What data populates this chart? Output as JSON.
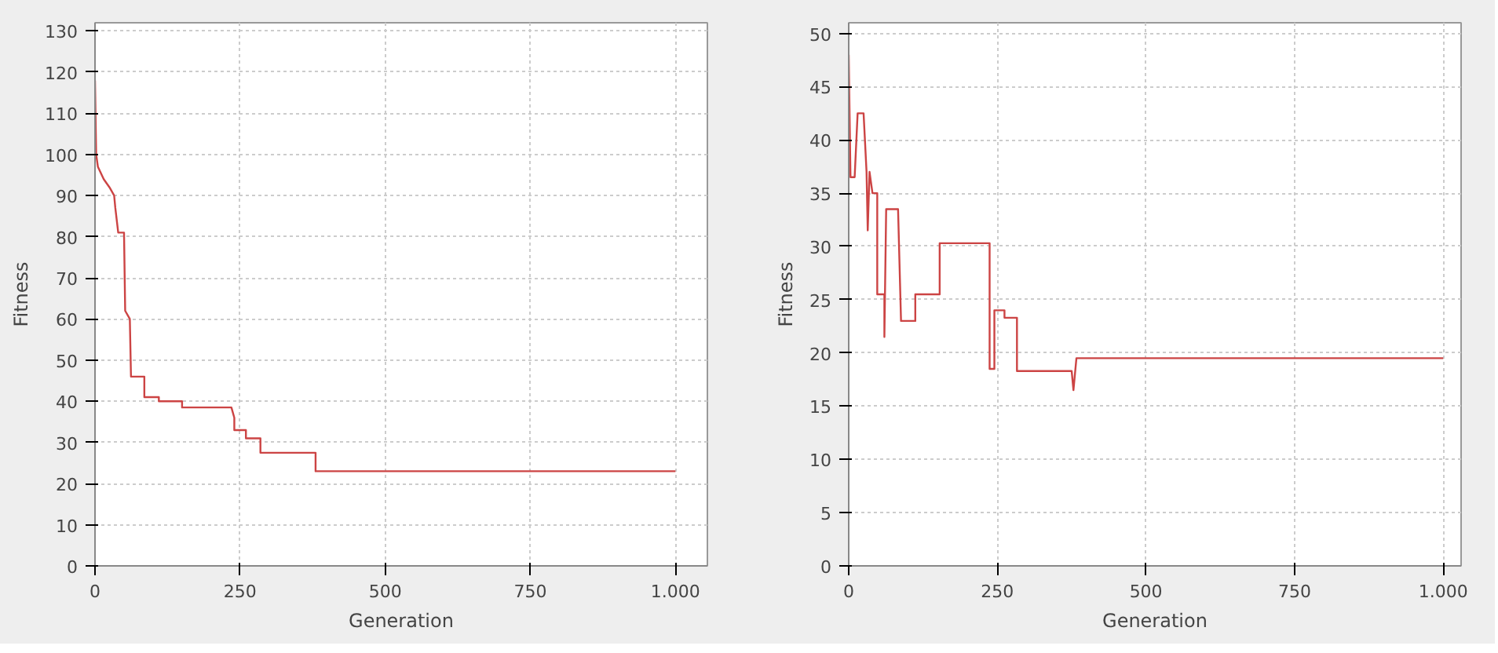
{
  "chart_data": [
    {
      "type": "line",
      "xlabel": "Generation",
      "ylabel": "Fitness",
      "xlim": [
        0,
        1055
      ],
      "ylim": [
        0,
        132
      ],
      "xticks": [
        0,
        250,
        500,
        750,
        {
          "value": 1000,
          "label": "1.000"
        }
      ],
      "yticks": [
        0,
        10,
        20,
        30,
        40,
        50,
        60,
        70,
        80,
        90,
        100,
        110,
        120,
        130
      ],
      "grid": true,
      "line_style": "solid",
      "marker": "none",
      "series": [
        {
          "color": "#cc4444",
          "x": [
            0,
            2,
            5,
            15,
            25,
            33,
            35,
            40,
            50,
            52,
            60,
            62,
            85,
            85,
            110,
            110,
            150,
            150,
            235,
            240,
            240,
            260,
            260,
            285,
            285,
            380,
            380,
            1000
          ],
          "values": [
            118,
            100,
            97,
            94,
            92,
            90,
            87,
            81,
            81,
            62,
            60,
            46,
            46,
            41,
            41,
            40,
            40,
            38.5,
            38.5,
            36,
            33,
            33,
            31,
            31,
            27.5,
            27.5,
            23,
            23
          ]
        }
      ]
    },
    {
      "type": "line",
      "xlabel": "Generation",
      "ylabel": "Fitness",
      "xlim": [
        0,
        1030
      ],
      "ylim": [
        0,
        51
      ],
      "xticks": [
        0,
        250,
        500,
        750,
        {
          "value": 1000,
          "label": "1.000"
        }
      ],
      "yticks": [
        0,
        5,
        10,
        15,
        20,
        25,
        30,
        35,
        40,
        45,
        50
      ],
      "grid": true,
      "line_style": "solid",
      "marker": "none",
      "series": [
        {
          "color": "#cc4444",
          "x": [
            0,
            3,
            10,
            15,
            25,
            30,
            32,
            35,
            40,
            48,
            48,
            60,
            60,
            63,
            83,
            88,
            112,
            112,
            153,
            153,
            237,
            237,
            245,
            245,
            262,
            262,
            283,
            283,
            375,
            378,
            383,
            1000
          ],
          "values": [
            48,
            36.5,
            36.5,
            42.5,
            42.5,
            37,
            31.5,
            37,
            35,
            35,
            25.5,
            25.5,
            21.5,
            33.5,
            33.5,
            23,
            23,
            25.5,
            25.5,
            30.3,
            30.3,
            18.5,
            18.5,
            24,
            24,
            23.3,
            23.3,
            18.3,
            18.3,
            16.5,
            19.5,
            19.5
          ]
        }
      ]
    }
  ]
}
